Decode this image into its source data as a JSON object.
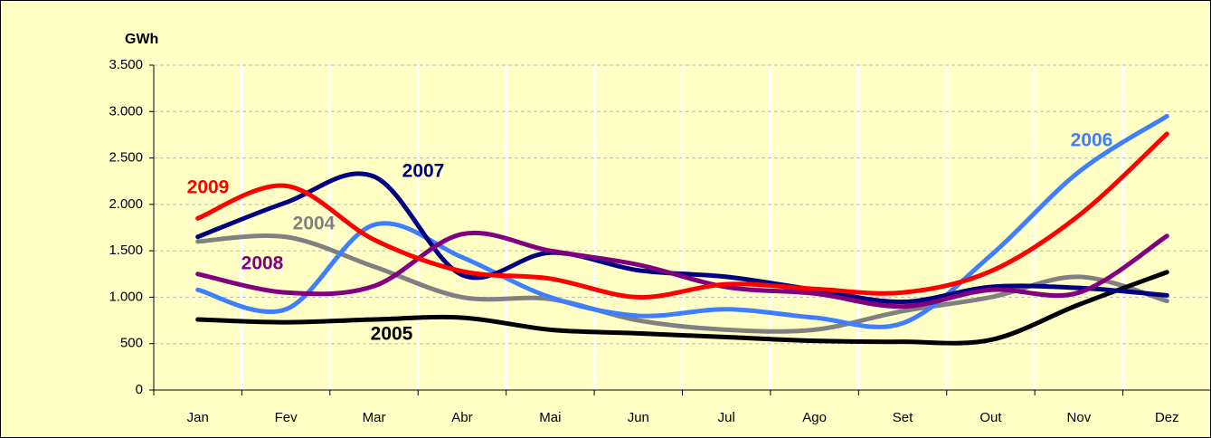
{
  "chart_data": {
    "type": "line",
    "y_label": "GWh",
    "categories": [
      "Jan",
      "Fev",
      "Mar",
      "Abr",
      "Mai",
      "Jun",
      "Jul",
      "Ago",
      "Set",
      "Out",
      "Nov",
      "Dez"
    ],
    "series": [
      {
        "name": "2004",
        "color": "#808080",
        "values": [
          1600,
          1650,
          1330,
          1000,
          980,
          750,
          650,
          650,
          850,
          1000,
          1220,
          960
        ]
      },
      {
        "name": "2005",
        "color": "#000000",
        "values": [
          760,
          730,
          760,
          780,
          650,
          610,
          570,
          530,
          520,
          540,
          920,
          1270
        ]
      },
      {
        "name": "2006",
        "color": "#3F7FFF",
        "values": [
          1080,
          870,
          1780,
          1430,
          1000,
          800,
          870,
          780,
          720,
          1450,
          2350,
          2950
        ]
      },
      {
        "name": "2007",
        "color": "#000080",
        "values": [
          1650,
          2020,
          2300,
          1240,
          1480,
          1290,
          1220,
          1080,
          950,
          1110,
          1100,
          1020
        ]
      },
      {
        "name": "2008",
        "color": "#800080",
        "values": [
          1250,
          1050,
          1120,
          1680,
          1500,
          1350,
          1110,
          1040,
          900,
          1080,
          1050,
          1660
        ]
      },
      {
        "name": "2009",
        "color": "#FF0000",
        "values": [
          1850,
          2200,
          1620,
          1280,
          1200,
          1000,
          1140,
          1090,
          1050,
          1280,
          1880,
          2760
        ]
      }
    ],
    "ylim": [
      0,
      3500
    ],
    "yticks": [
      0,
      500,
      {
        "value": 1000,
        "label": "1.000"
      },
      {
        "value": 1500,
        "label": "1.500"
      },
      {
        "value": 2000,
        "label": "2.000"
      },
      {
        "value": 2500,
        "label": "2.500"
      },
      {
        "value": 3000,
        "label": "3.000"
      },
      {
        "value": 3500,
        "label": "3.500"
      }
    ],
    "grid": true,
    "smooth": true
  }
}
